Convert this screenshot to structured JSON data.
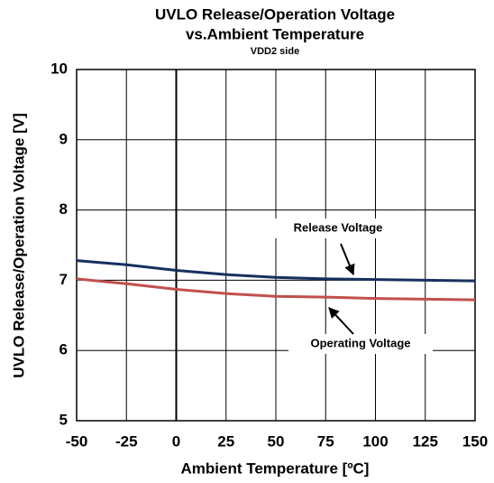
{
  "chart_data": {
    "type": "line",
    "title": [
      "UVLO Release/Operation Voltage",
      "vs.Ambient Temperature"
    ],
    "subtitle": "VDD2 side",
    "x_label": "Ambient Temperature [ºC]",
    "y_label": "UVLO Release/Operation Voltage [V]",
    "x": [
      -50,
      -25,
      0,
      25,
      50,
      75,
      100,
      125,
      150
    ],
    "series": [
      {
        "name": "Release Voltage",
        "color": "#17305e",
        "values": [
          7.28,
          7.22,
          7.14,
          7.08,
          7.04,
          7.02,
          7.01,
          7.0,
          6.99
        ]
      },
      {
        "name": "Operating Voltage",
        "color": "#c0504d",
        "values": [
          7.02,
          6.95,
          6.87,
          6.81,
          6.77,
          6.76,
          6.74,
          6.73,
          6.72
        ]
      }
    ],
    "xlim": [
      -50,
      150
    ],
    "xticks": [
      -50,
      -25,
      0,
      25,
      50,
      75,
      100,
      125,
      150
    ],
    "ylim": [
      5,
      10
    ],
    "yticks": [
      5,
      6,
      7,
      8,
      9,
      10
    ],
    "grid": true
  }
}
